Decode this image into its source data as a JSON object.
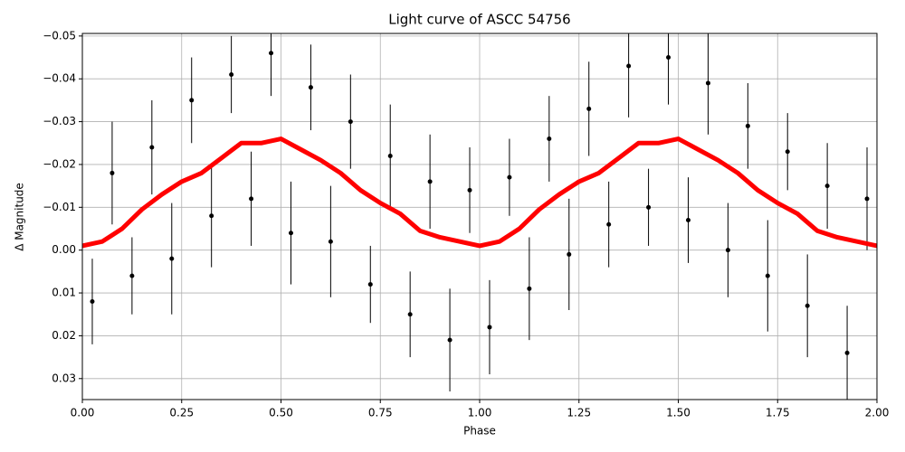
{
  "chart_data": {
    "type": "scatter",
    "title": "Light curve of ASCC 54756",
    "x_label": "Phase",
    "y_label": "Δ Magnitude",
    "xlim": [
      0,
      2
    ],
    "ylim": [
      0.0349,
      -0.0506
    ],
    "xticks": [
      {
        "value": 0,
        "label": "0.00"
      },
      0.25,
      {
        "value": 0.5,
        "label": "0.50"
      },
      0.75,
      {
        "value": 1,
        "label": "1.00"
      },
      1.25,
      {
        "value": 1.5,
        "label": "1.50"
      },
      1.75,
      {
        "value": 2,
        "label": "2.00"
      }
    ],
    "yticks": [
      {
        "value": -0.05,
        "label": "−0.05"
      },
      {
        "value": -0.04,
        "label": "−0.04"
      },
      {
        "value": -0.03,
        "label": "−0.03"
      },
      {
        "value": -0.02,
        "label": "−0.02"
      },
      {
        "value": -0.01,
        "label": "−0.01"
      },
      {
        "value": 0,
        "label": "0.00"
      },
      0.01,
      0.02,
      0.03
    ],
    "grid": true,
    "series": [
      {
        "color": "#000000",
        "x": [
          0.025,
          0.075,
          0.125,
          0.175,
          0.225,
          0.275,
          0.325,
          0.375,
          0.425,
          0.475,
          0.525,
          0.575,
          0.625,
          0.675,
          0.725,
          0.775,
          0.825,
          0.875,
          0.925,
          0.975,
          1.025,
          1.075,
          1.125,
          1.175,
          1.225,
          1.275,
          1.325,
          1.375,
          1.425,
          1.475,
          1.525,
          1.575,
          1.625,
          1.675,
          1.725,
          1.775,
          1.825,
          1.875,
          1.925,
          1.975
        ],
        "values": [
          0.012,
          -0.018,
          0.006,
          -0.024,
          0.002,
          -0.035,
          -0.008,
          -0.041,
          -0.012,
          -0.046,
          -0.004,
          -0.038,
          -0.002,
          -0.03,
          0.008,
          -0.022,
          0.015,
          -0.016,
          0.021,
          -0.014,
          0.018,
          -0.017,
          0.009,
          -0.026,
          0.001,
          -0.033,
          -0.006,
          -0.043,
          -0.01,
          -0.045,
          -0.007,
          -0.039,
          0,
          -0.029,
          0.006,
          -0.023,
          0.013,
          -0.015,
          0.024,
          -0.012
        ],
        "errors": [
          0.01,
          0.012,
          0.009,
          0.011,
          0.013,
          0.01,
          0.012,
          0.009,
          0.011,
          0.01,
          0.012,
          0.01,
          0.013,
          0.011,
          0.009,
          0.012,
          0.01,
          0.011,
          0.012,
          0.01,
          0.011,
          0.009,
          0.012,
          0.01,
          0.013,
          0.011,
          0.01,
          0.012,
          0.009,
          0.011,
          0.01,
          0.012,
          0.011,
          0.01,
          0.013,
          0.009,
          0.012,
          0.01,
          0.011,
          0.012
        ]
      },
      {
        "color": "#ff0000",
        "x": [
          0,
          0.05,
          0.1,
          0.15,
          0.2,
          0.25,
          0.3,
          0.35,
          0.4,
          0.45,
          0.5,
          0.55,
          0.6,
          0.65,
          0.7,
          0.75,
          0.8,
          0.85,
          0.9,
          0.95,
          1,
          1.05,
          1.1,
          1.15,
          1.2,
          1.25,
          1.3,
          1.35,
          1.4,
          1.45,
          1.5,
          1.55,
          1.6,
          1.65,
          1.7,
          1.75,
          1.8,
          1.85,
          1.9,
          1.95,
          2
        ],
        "values": [
          -0.001,
          -0.002,
          -0.005,
          -0.0095,
          -0.013,
          -0.016,
          -0.018,
          -0.0215,
          -0.025,
          -0.025,
          -0.026,
          -0.0235,
          -0.021,
          -0.018,
          -0.014,
          -0.011,
          -0.0085,
          -0.0045,
          -0.003,
          -0.002,
          -0.001,
          -0.002,
          -0.005,
          -0.0095,
          -0.013,
          -0.016,
          -0.018,
          -0.0215,
          -0.025,
          -0.025,
          -0.026,
          -0.0235,
          -0.021,
          -0.018,
          -0.014,
          -0.011,
          -0.0085,
          -0.0045,
          -0.003,
          -0.002,
          -0.001
        ]
      }
    ]
  }
}
